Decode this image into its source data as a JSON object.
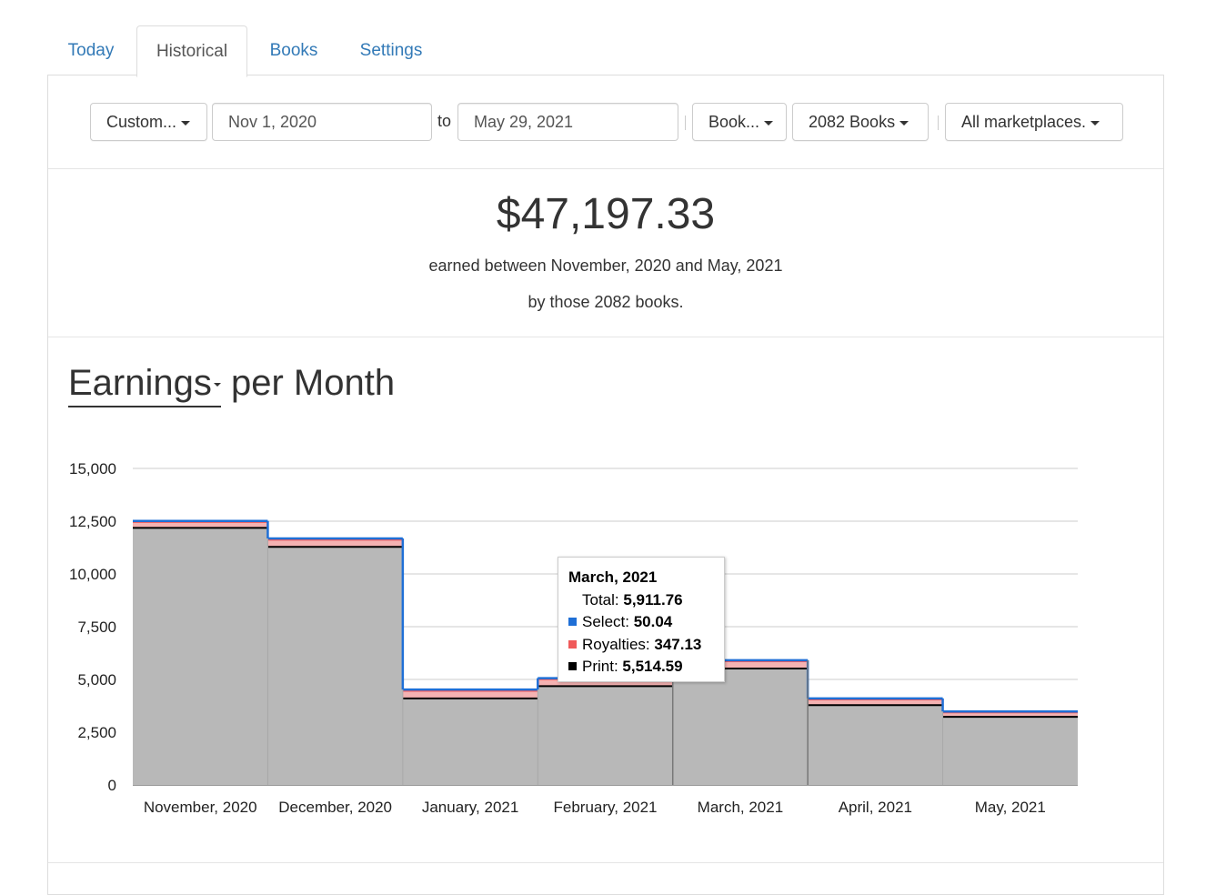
{
  "tabs": [
    {
      "label": "Today"
    },
    {
      "label": "Historical"
    },
    {
      "label": "Books"
    },
    {
      "label": "Settings"
    }
  ],
  "filters": {
    "range_preset": "Custom...",
    "start_date": "Nov 1, 2020",
    "to_label": "to",
    "end_date": "May 29, 2021",
    "group_by": "Book...",
    "books": "2082 Books",
    "marketplace": "All marketplaces."
  },
  "summary": {
    "total": "$47,197.33",
    "line1": "earned between November, 2020 and May, 2021",
    "line2": "by those 2082 books."
  },
  "chart_heading": {
    "metric": "Earnings",
    "suffix": "per Month"
  },
  "colors": {
    "select": "#1f6fd6",
    "royalties": "#f05a5a",
    "print": "#000000",
    "area_fill": "#b8b8b8",
    "tab_link": "#337ab7"
  },
  "chart_data": {
    "type": "area",
    "stepped": true,
    "stacked": true,
    "categories": [
      "November, 2020",
      "December, 2020",
      "January, 2021",
      "February, 2021",
      "March, 2021",
      "April, 2021",
      "May, 2021"
    ],
    "ylim": [
      0,
      15000
    ],
    "y_ticks": [
      "0",
      "2,500",
      "5,000",
      "7,500",
      "10,000",
      "12,500",
      "15,000"
    ],
    "grid": true,
    "series": [
      {
        "name": "Print",
        "values": [
          12180,
          11280,
          4100,
          4680,
          5514.59,
          3780,
          3230
        ]
      },
      {
        "name": "Royalties",
        "values": [
          280,
          340,
          360,
          330,
          347.13,
          270,
          210
        ]
      },
      {
        "name": "Select",
        "values": [
          50,
          60,
          60,
          50,
          50.04,
          50,
          40
        ]
      }
    ],
    "tooltip": {
      "title": "March, 2021",
      "total_label": "Total:",
      "total_value": "5,911.76",
      "rows": [
        {
          "label": "Select:",
          "value": "50.04"
        },
        {
          "label": "Royalties:",
          "value": "347.13"
        },
        {
          "label": "Print:",
          "value": "5,514.59"
        }
      ]
    }
  }
}
